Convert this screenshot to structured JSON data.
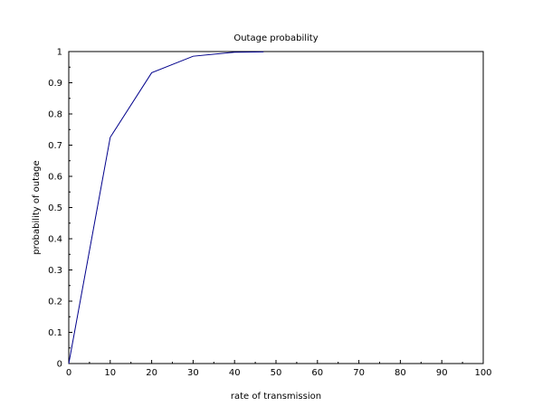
{
  "chart_data": {
    "type": "line",
    "title": "Outage probability",
    "xlabel": "rate of transmission",
    "ylabel": "probability of outage",
    "xlim": [
      0,
      100
    ],
    "ylim": [
      0,
      1
    ],
    "x_ticks": [
      0,
      10,
      20,
      30,
      40,
      50,
      60,
      70,
      80,
      90,
      100
    ],
    "y_ticks": [
      0,
      0.1,
      0.2,
      0.3,
      0.4,
      0.5,
      0.6,
      0.7,
      0.8,
      0.9,
      1
    ],
    "x_tick_labels": [
      "0",
      "10",
      "20",
      "30",
      "40",
      "50",
      "60",
      "70",
      "80",
      "90",
      "100"
    ],
    "y_tick_labels": [
      "0",
      "0.1",
      "0.2",
      "0.3",
      "0.4",
      "0.5",
      "0.6",
      "0.7",
      "0.8",
      "0.9",
      "1"
    ],
    "grid": false,
    "legend": "none",
    "series": [
      {
        "color": "#00008b",
        "x": [
          0,
          10,
          20,
          30,
          40,
          47
        ],
        "y": [
          0,
          0.725,
          0.932,
          0.985,
          0.998,
          0.999
        ]
      }
    ]
  }
}
